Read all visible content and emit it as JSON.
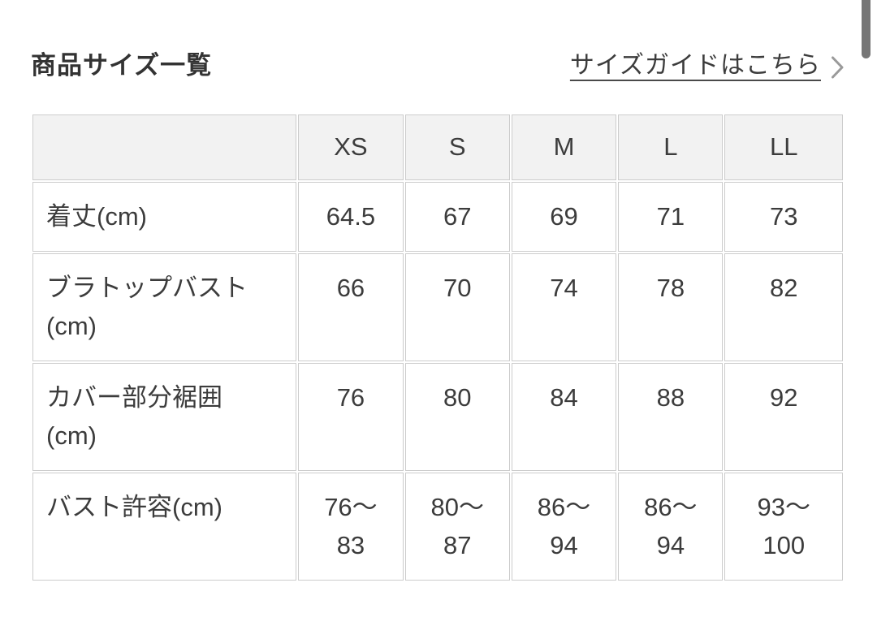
{
  "header": {
    "title": "商品サイズ一覧",
    "size_guide_link_label": "サイズガイドはこちら"
  },
  "icons": {
    "chevron_right": "chevron-right"
  },
  "chart_data": {
    "type": "table",
    "title": "商品サイズ一覧",
    "column_headers": [
      "",
      "XS",
      "S",
      "M",
      "L",
      "LL"
    ],
    "rows": [
      {
        "label": "着丈(cm)",
        "values": [
          "64.5",
          "67",
          "69",
          "71",
          "73"
        ]
      },
      {
        "label": "ブラトップバスト\n(cm)",
        "values": [
          "66",
          "70",
          "74",
          "78",
          "82"
        ]
      },
      {
        "label": "カバー部分裾囲\n(cm)",
        "values": [
          "76",
          "80",
          "84",
          "88",
          "92"
        ]
      },
      {
        "label": "バスト許容(cm)",
        "values": [
          "76〜\n83",
          "80〜\n87",
          "86〜\n94",
          "86〜\n94",
          "93〜\n100"
        ]
      }
    ]
  },
  "colors": {
    "text": "#3c3c3c",
    "title_text": "#333333",
    "header_cell_bg": "#f2f2f2",
    "cell_border": "#cccccc",
    "chevron": "#9a9a9a",
    "scrollbar_thumb": "#767676"
  }
}
